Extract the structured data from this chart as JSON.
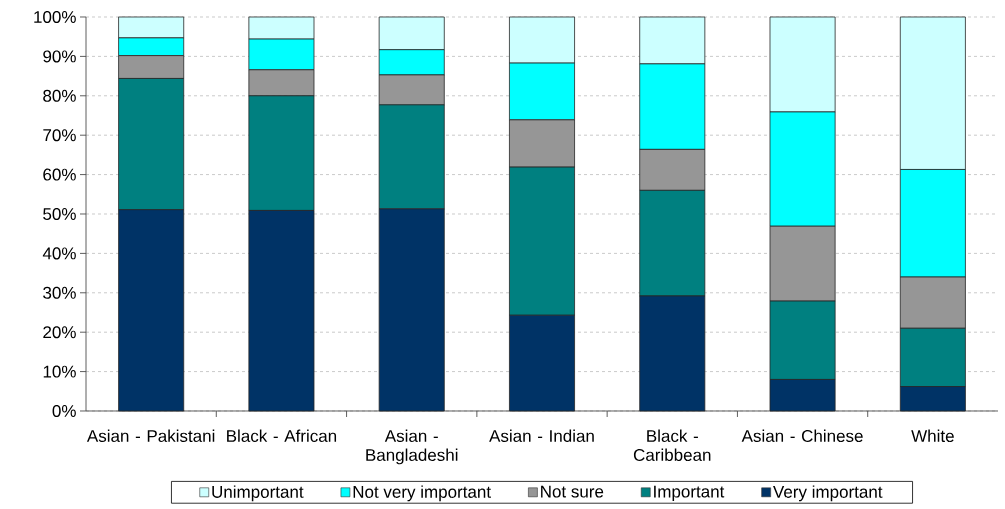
{
  "chart_data": {
    "type": "bar",
    "stacked": true,
    "categories": [
      "Asian - Pakistani",
      "Black - African",
      "Asian - Bangladeshi",
      "Asian - Indian",
      "Black - Caribbean",
      "Asian - Chinese",
      "White"
    ],
    "series": [
      {
        "name": "Very important",
        "color": "#003366",
        "values": [
          51.1,
          50.9,
          51.3,
          24.3,
          29.2,
          8.0,
          6.2
        ]
      },
      {
        "name": "Important",
        "color": "#008080",
        "values": [
          33.3,
          29.1,
          26.4,
          37.6,
          26.8,
          19.9,
          14.8
        ]
      },
      {
        "name": "Not sure",
        "color": "#969696",
        "values": [
          5.8,
          6.6,
          7.6,
          12.0,
          10.4,
          19.0,
          13.0
        ]
      },
      {
        "name": "Not very important",
        "color": "#00ffff",
        "values": [
          4.5,
          7.8,
          6.4,
          14.4,
          21.7,
          29.0,
          27.3
        ]
      },
      {
        "name": "Unimportant",
        "color": "#ccffff",
        "values": [
          5.3,
          5.6,
          8.3,
          11.7,
          11.9,
          24.1,
          38.7
        ]
      }
    ],
    "ylim": [
      0,
      100
    ],
    "yticks": [
      {
        "value": 0,
        "label": "0%"
      },
      {
        "value": 10,
        "label": "10%"
      },
      {
        "value": 20,
        "label": "20%"
      },
      {
        "value": 30,
        "label": "30%"
      },
      {
        "value": 40,
        "label": "40%"
      },
      {
        "value": 50,
        "label": "50%"
      },
      {
        "value": 60,
        "label": "60%"
      },
      {
        "value": 70,
        "label": "70%"
      },
      {
        "value": 80,
        "label": "80%"
      },
      {
        "value": 90,
        "label": "90%"
      },
      {
        "value": 100,
        "label": "100%"
      }
    ],
    "grid": "y",
    "legend": "bottom"
  }
}
